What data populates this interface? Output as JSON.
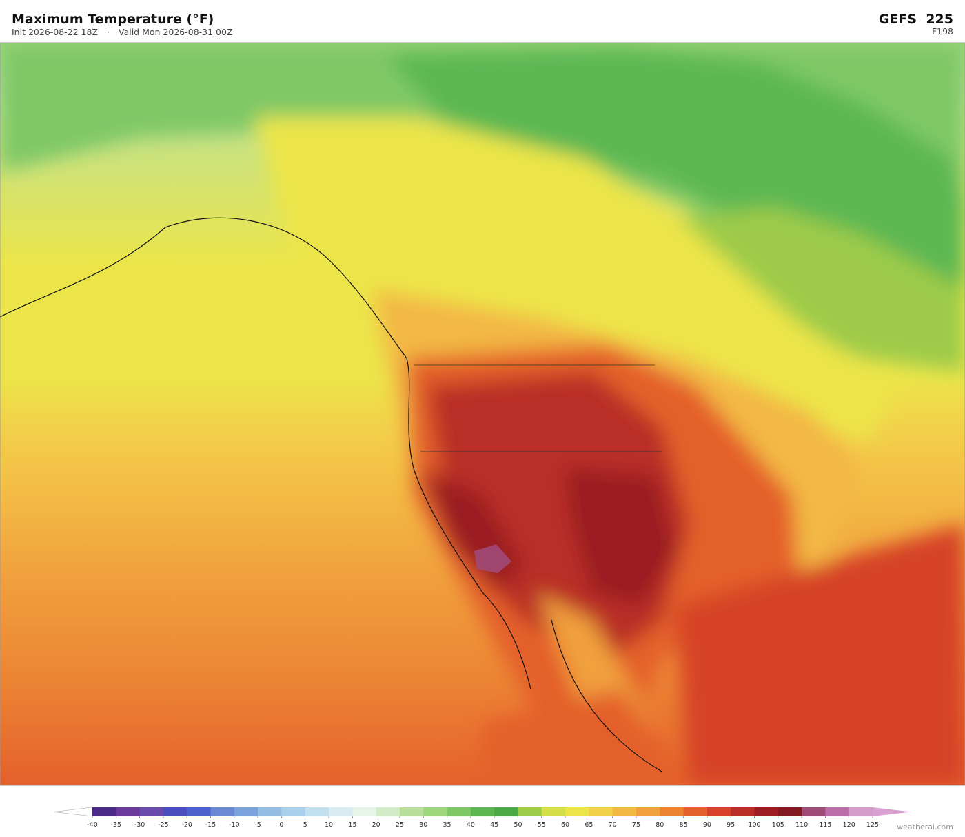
{
  "header": {
    "title": "Maximum Temperature  (°F)",
    "init": "Init 2026-08-22 18Z",
    "separator": "·",
    "valid": "Valid Mon 2026-08-31 00Z",
    "model": "GEFS  225",
    "step": "F198"
  },
  "colorbar": {
    "ticks": [
      -40,
      -35,
      -30,
      -25,
      -20,
      -15,
      -10,
      -5,
      0,
      5,
      10,
      15,
      20,
      25,
      30,
      35,
      40,
      45,
      50,
      55,
      60,
      65,
      70,
      75,
      80,
      85,
      90,
      95,
      100,
      105,
      110,
      115,
      120,
      125
    ],
    "colors": [
      "#4b2a8a",
      "#6a3a9c",
      "#6a4aad",
      "#4a4fbf",
      "#4e62cc",
      "#6a88d4",
      "#7aa3dc",
      "#94bde3",
      "#a9d0ea",
      "#c2e0ef",
      "#d9ecf2",
      "#e6f4ea",
      "#d2ecc8",
      "#b9e09a",
      "#9dd67d",
      "#7fc866",
      "#5cb752",
      "#4aaa48",
      "#9dcb4a",
      "#d4de48",
      "#ece54a",
      "#f3d04a",
      "#f3b844",
      "#f0a03e",
      "#ec8434",
      "#e4602c",
      "#d64328",
      "#b92f26",
      "#9a1e22",
      "#821a22",
      "#a04a78",
      "#bc6fa8",
      "#d59ccb"
    ],
    "under_color": "#ffffff",
    "over_color": "#d8a0d0"
  },
  "footer": {
    "watermark": "weatherai.com"
  }
}
